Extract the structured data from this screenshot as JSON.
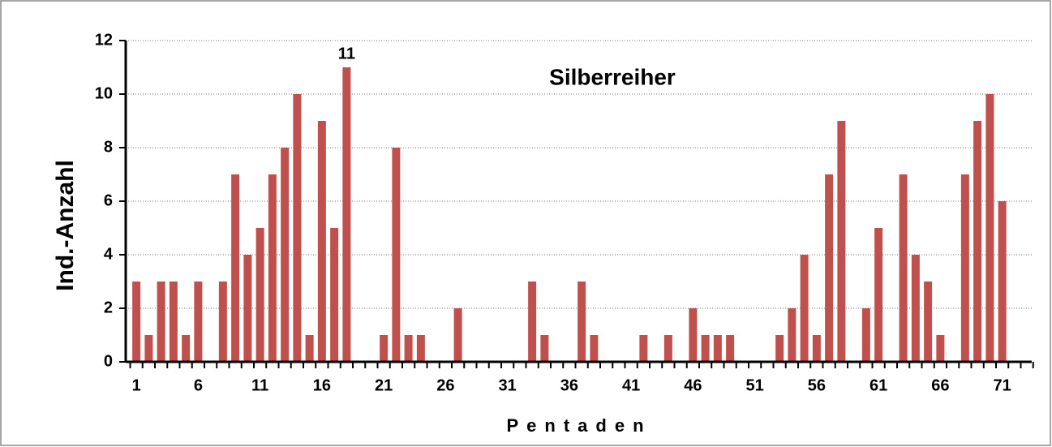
{
  "chart_data": {
    "type": "bar",
    "title": "Silberreiher",
    "x_label": "Pentaden",
    "y_label": "Ind.-Anzahl",
    "categories": [
      "1",
      null,
      null,
      null,
      null,
      "6",
      null,
      null,
      null,
      null,
      "11",
      null,
      null,
      null,
      null,
      "16",
      null,
      null,
      null,
      null,
      "21",
      null,
      null,
      null,
      null,
      "26",
      null,
      null,
      null,
      null,
      "31",
      null,
      null,
      null,
      null,
      "36",
      null,
      null,
      null,
      null,
      "41",
      null,
      null,
      null,
      null,
      "46",
      null,
      null,
      null,
      null,
      "51",
      null,
      null,
      null,
      null,
      "56",
      null,
      null,
      null,
      null,
      "61",
      null,
      null,
      null,
      null,
      "66",
      null,
      null,
      null,
      null,
      "71",
      null,
      null
    ],
    "values": [
      3,
      1,
      3,
      3,
      1,
      3,
      0,
      3,
      7,
      4,
      5,
      7,
      8,
      10,
      1,
      9,
      5,
      11,
      0,
      0,
      1,
      8,
      1,
      1,
      0,
      0,
      2,
      0,
      0,
      0,
      0,
      0,
      3,
      1,
      0,
      0,
      3,
      1,
      0,
      0,
      0,
      1,
      0,
      1,
      0,
      2,
      1,
      1,
      1,
      0,
      0,
      0,
      1,
      2,
      4,
      1,
      7,
      9,
      0,
      2,
      5,
      0,
      7,
      4,
      3,
      1,
      0,
      7,
      9,
      10,
      6,
      0,
      0
    ],
    "value_labels": [
      null,
      null,
      null,
      null,
      null,
      null,
      null,
      null,
      null,
      null,
      null,
      null,
      null,
      null,
      null,
      null,
      null,
      "11",
      null,
      null,
      null,
      null,
      null,
      null,
      null,
      null,
      null,
      null,
      null,
      null,
      null,
      null,
      null,
      null,
      null,
      null,
      null,
      null,
      null,
      null,
      null,
      null,
      null,
      null,
      null,
      null,
      null,
      null,
      null,
      null,
      null,
      null,
      null,
      null,
      null,
      null,
      null,
      null,
      null,
      null,
      null,
      null,
      null,
      null,
      null,
      null,
      null,
      null,
      null,
      null,
      null,
      null,
      null
    ],
    "color": "#c0504d",
    "ylim": [
      0,
      12
    ],
    "yticks": [
      0,
      2,
      4,
      6,
      8,
      10,
      12
    ],
    "grid": true
  }
}
